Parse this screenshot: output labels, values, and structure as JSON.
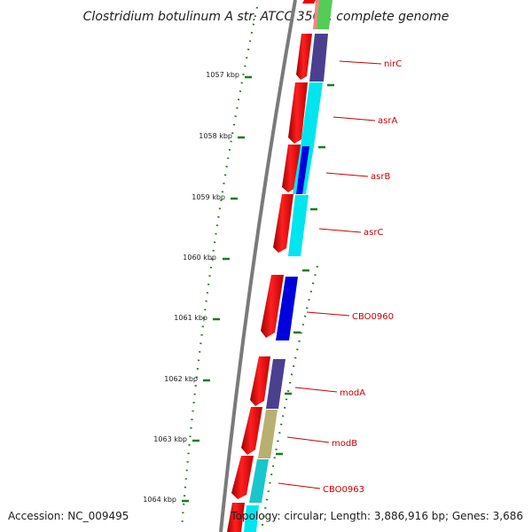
{
  "title": "Clostridium botulinum A str. ATCC 3502, complete genome",
  "footer": {
    "accession": "Accession: NC_009495",
    "topology": "Topology: circular; Length: 3,886,916 bp; Genes: 3,686"
  },
  "ticks": [
    "1057 kbp",
    "1058 kbp",
    "1059 kbp",
    "1060 kbp",
    "1061 kbp",
    "1062 kbp",
    "1063 kbp",
    "1064 kbp"
  ],
  "genes": [
    "nirC",
    "asrA",
    "asrB",
    "asrC",
    "CBO0960",
    "modA",
    "modB",
    "CBO0963"
  ],
  "colors": {
    "cds": "#ee0000",
    "slate": "#4b3f8f",
    "cyan": "#00e5ee",
    "blue": "#0000dd",
    "khaki": "#b8b070",
    "teal": "#19c6cc",
    "green": "#22aa22",
    "gene_label": "#cc0000",
    "backbone": "#808080"
  }
}
